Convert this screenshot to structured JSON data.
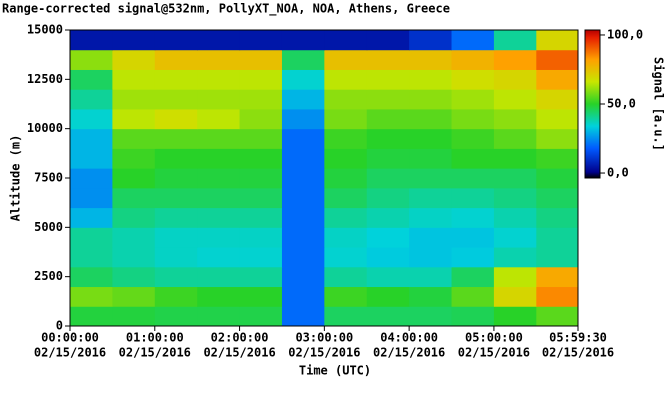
{
  "chart_data": {
    "type": "heatmap",
    "title": "Range-corrected signal@532nm, PollyXT_NOA, NOA, Athens, Greece",
    "xlabel": "Time (UTC)",
    "ylabel": "Altitude (m)",
    "colorbar_label": "Signal [a.u.]",
    "xlim": [
      0,
      5.9917
    ],
    "ylim": [
      0,
      15000
    ],
    "xticks": [
      {
        "value": 0,
        "label": "00:00:00",
        "date": "02/15/2016"
      },
      {
        "value": 1,
        "label": "01:00:00",
        "date": "02/15/2016"
      },
      {
        "value": 2,
        "label": "02:00:00",
        "date": "02/15/2016"
      },
      {
        "value": 3,
        "label": "03:00:00",
        "date": "02/15/2016"
      },
      {
        "value": 4,
        "label": "04:00:00",
        "date": "02/15/2016"
      },
      {
        "value": 5,
        "label": "05:00:00",
        "date": "02/15/2016"
      },
      {
        "value": 5.9917,
        "label": "05:59:30",
        "date": "02/15/2016"
      }
    ],
    "yticks": [
      0,
      2500,
      5000,
      7500,
      10000,
      12500,
      15000
    ],
    "clim": [
      -3.6,
      103.6
    ],
    "cticks": [
      {
        "value": 100,
        "label": "100,0"
      },
      {
        "value": 50,
        "label": "50,0"
      },
      {
        "value": 0,
        "label": "0,0"
      }
    ],
    "xbins": [
      0,
      0.5,
      1,
      1.5,
      2,
      2.5,
      3,
      3.5,
      4,
      4.5,
      5,
      5.5,
      5.9917
    ],
    "ybins": [
      0,
      1000,
      2000,
      3000,
      4000,
      5000,
      6000,
      7000,
      8000,
      9000,
      10000,
      11000,
      12000,
      13000,
      14000,
      15000
    ],
    "z": [
      [
        48,
        48,
        47,
        47,
        47,
        20,
        45,
        45,
        45,
        46,
        50,
        55
      ],
      [
        58,
        56,
        52,
        50,
        50,
        20,
        52,
        50,
        48,
        55,
        70,
        85
      ],
      [
        45,
        42,
        40,
        40,
        40,
        20,
        40,
        38,
        38,
        45,
        65,
        80
      ],
      [
        40,
        38,
        36,
        35,
        35,
        20,
        35,
        33,
        32,
        33,
        38,
        40
      ],
      [
        40,
        38,
        36,
        36,
        36,
        20,
        36,
        34,
        32,
        32,
        35,
        40
      ],
      [
        30,
        42,
        40,
        40,
        40,
        20,
        40,
        38,
        36,
        35,
        38,
        42
      ],
      [
        25,
        45,
        45,
        45,
        45,
        20,
        45,
        42,
        40,
        40,
        42,
        45
      ],
      [
        25,
        50,
        48,
        48,
        48,
        20,
        48,
        45,
        45,
        45,
        45,
        48
      ],
      [
        30,
        52,
        50,
        50,
        50,
        20,
        50,
        48,
        48,
        50,
        50,
        52
      ],
      [
        30,
        55,
        55,
        55,
        55,
        20,
        52,
        50,
        50,
        52,
        55,
        60
      ],
      [
        35,
        65,
        68,
        65,
        60,
        25,
        58,
        55,
        55,
        58,
        60,
        65
      ],
      [
        40,
        62,
        62,
        62,
        62,
        30,
        60,
        60,
        60,
        62,
        65,
        70
      ],
      [
        45,
        65,
        65,
        65,
        65,
        35,
        65,
        65,
        65,
        68,
        70,
        80
      ],
      [
        60,
        70,
        75,
        75,
        75,
        45,
        75,
        75,
        75,
        78,
        82,
        90
      ],
      [
        5,
        5,
        5,
        5,
        5,
        5,
        5,
        5,
        10,
        20,
        40,
        70
      ]
    ]
  }
}
